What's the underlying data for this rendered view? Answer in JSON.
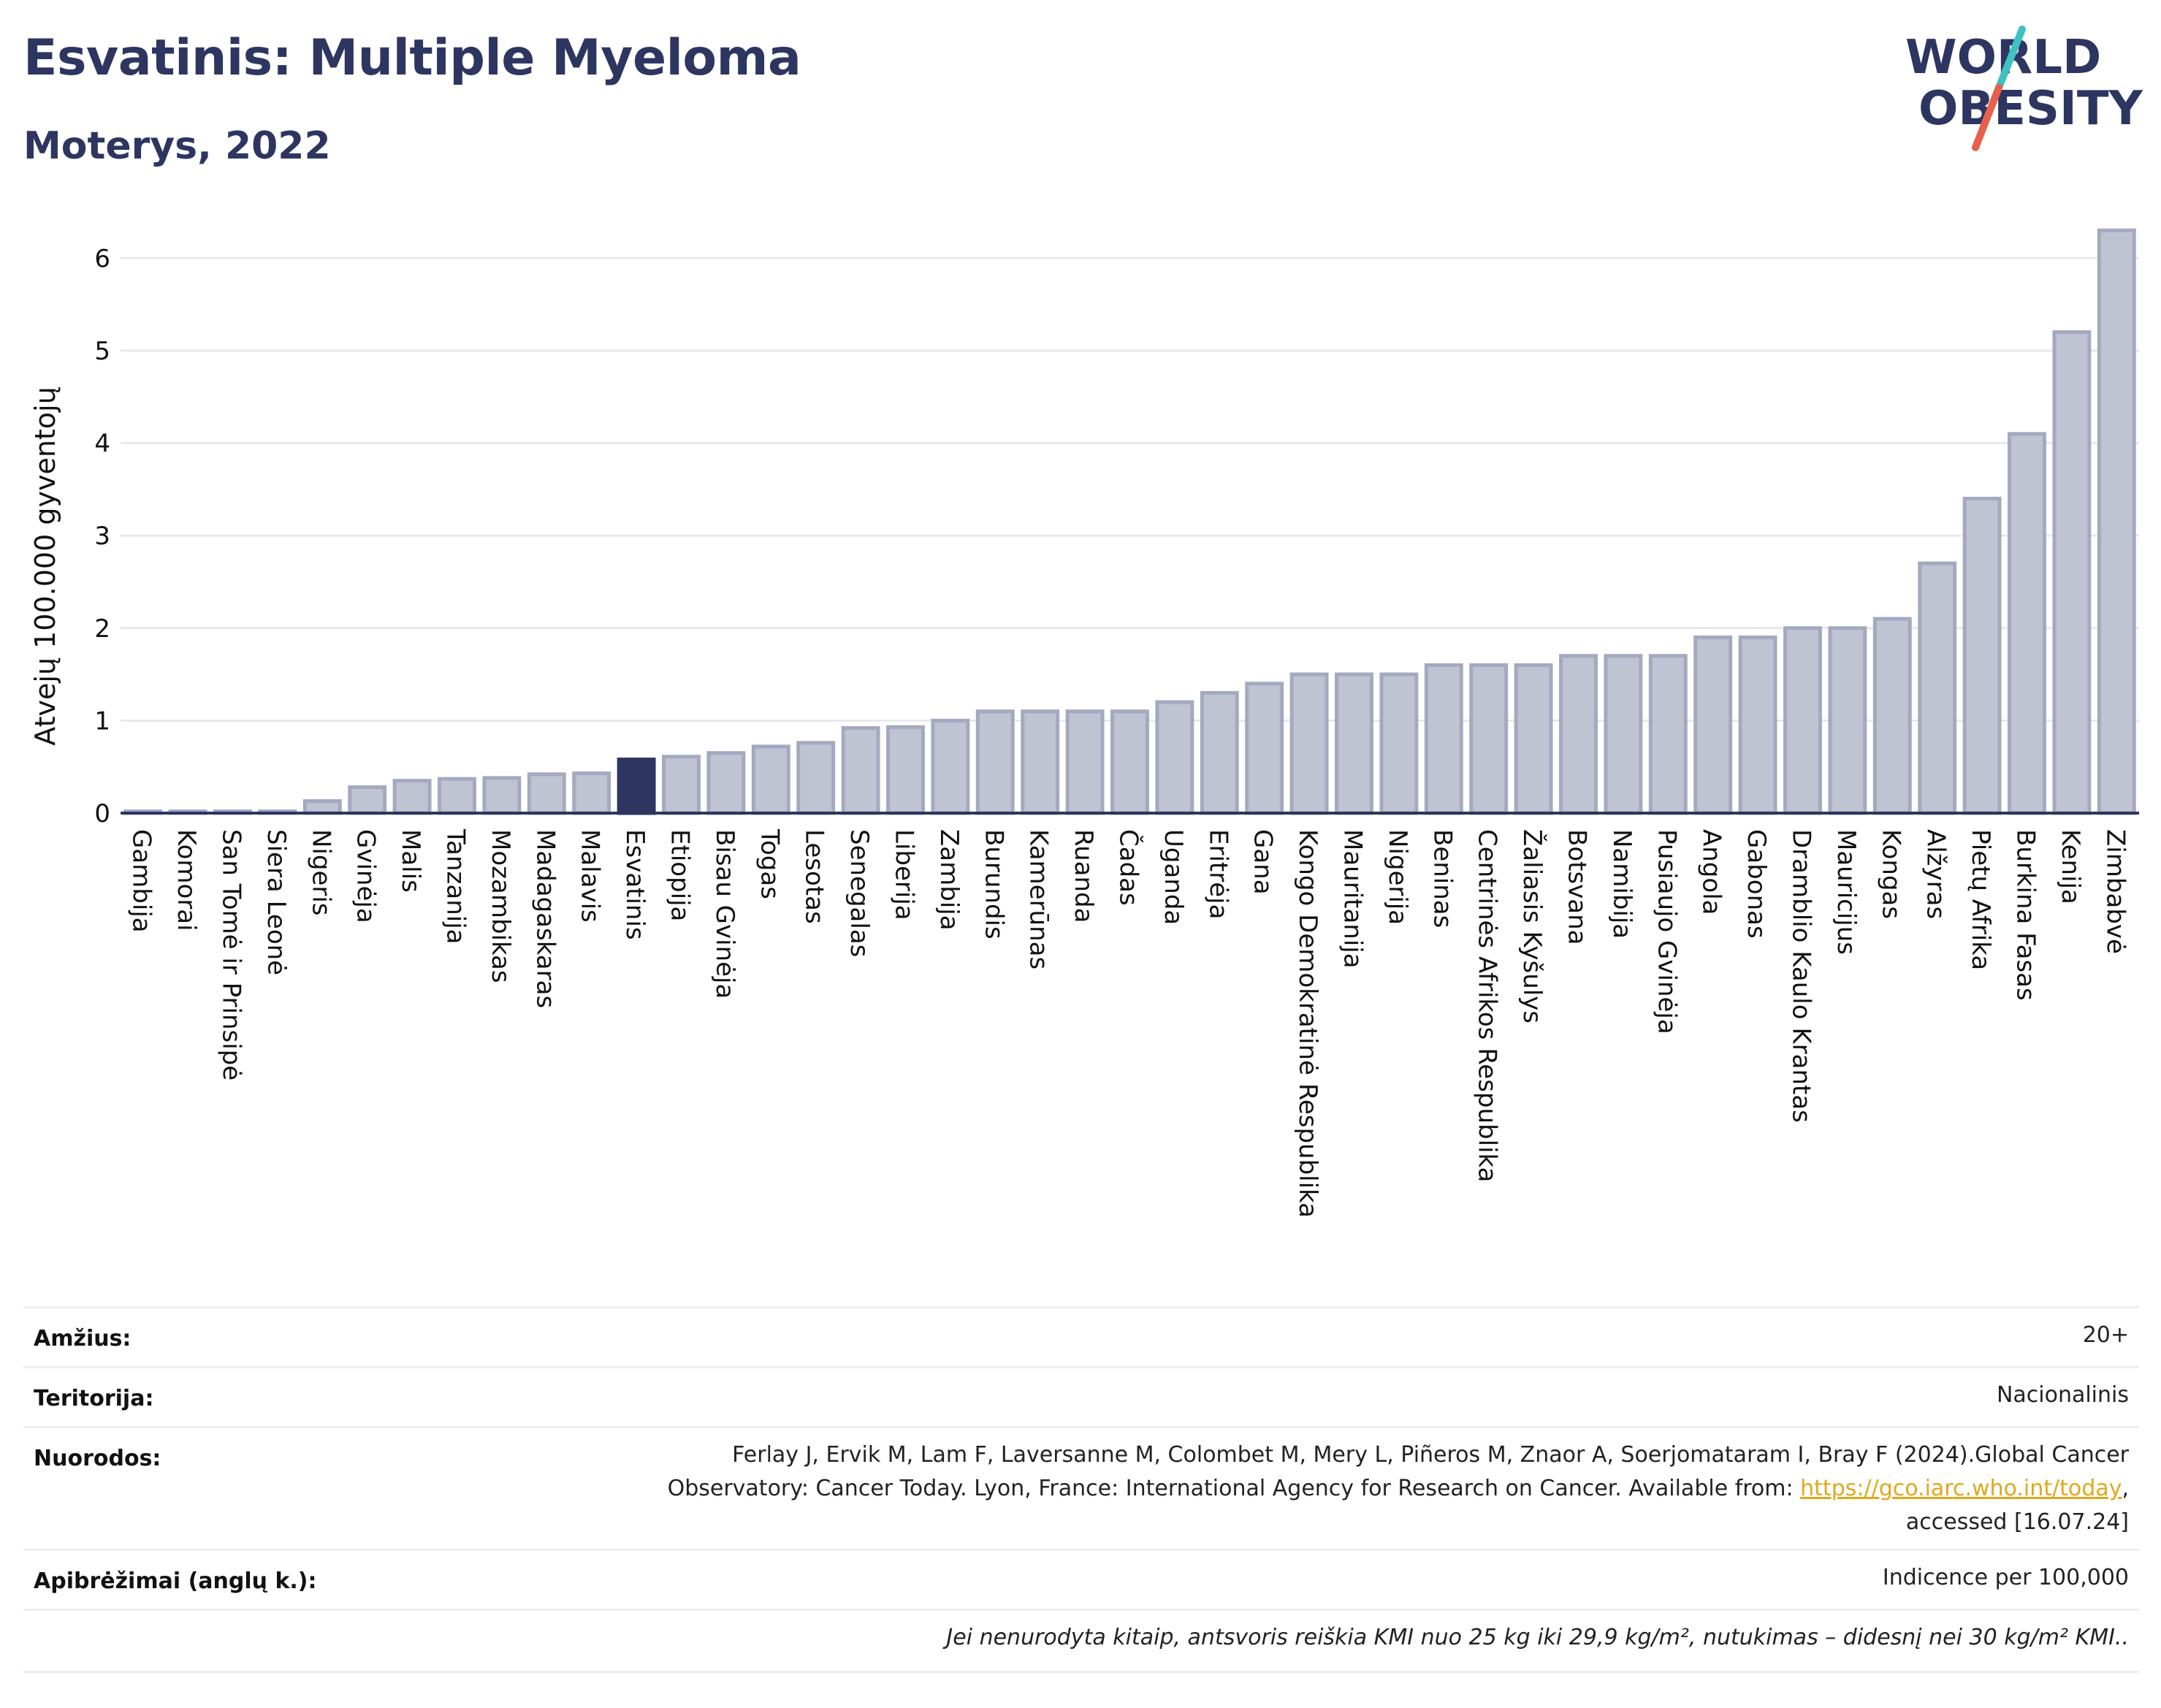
{
  "header": {
    "title": "Esvatinis: Multiple Myeloma",
    "subtitle": "Moterys, 2022"
  },
  "logo": {
    "line1": "WORLD",
    "line2": "OBESITY",
    "accent_colors": [
      "#3fc1c0",
      "#e8604c"
    ],
    "text_color": "#2d3561"
  },
  "chart_data": {
    "type": "bar",
    "ylabel": "Atvejų 100.000 gyventojų",
    "ylim": [
      0,
      6.5
    ],
    "yticks": [
      0,
      1,
      2,
      3,
      4,
      5,
      6
    ],
    "grid": true,
    "highlight": "Esvatinis",
    "colors": {
      "bar": "#bfc3d2",
      "bar_edge": "#a4a9c0",
      "highlight": "#2d3561",
      "axis": "#2d3561",
      "grid": "#e6e8ee"
    },
    "categories": [
      "Gambija",
      "Komorai",
      "San Tomė ir Prinsipė",
      "Siera Leonė",
      "Nigeris",
      "Gvinėja",
      "Malis",
      "Tanzanija",
      "Mozambikas",
      "Madagaskaras",
      "Malavis",
      "Esvatinis",
      "Etiopija",
      "Bisau Gvinėja",
      "Togas",
      "Lesotas",
      "Senegalas",
      "Liberija",
      "Zambija",
      "Burundis",
      "Kamerūnas",
      "Ruanda",
      "Čadas",
      "Uganda",
      "Eritrėja",
      "Gana",
      "Kongo Demokratinė Respublika",
      "Mauritanija",
      "Nigerija",
      "Beninas",
      "Centrinės Afrikos Respublika",
      "Žaliasis Kyšulys",
      "Botsvana",
      "Namibija",
      "Pusiaujo Gvinėja",
      "Angola",
      "Gabonas",
      "Dramblio Kaulo Krantas",
      "Mauricijus",
      "Kongas",
      "Alžyras",
      "Pietų Afrika",
      "Burkina Fasas",
      "Kenija",
      "Zimbabvė"
    ],
    "values": [
      0.02,
      0.02,
      0.02,
      0.02,
      0.13,
      0.28,
      0.35,
      0.37,
      0.38,
      0.42,
      0.43,
      0.58,
      0.61,
      0.65,
      0.72,
      0.76,
      0.92,
      0.93,
      1.0,
      1.1,
      1.1,
      1.1,
      1.1,
      1.2,
      1.3,
      1.4,
      1.5,
      1.5,
      1.5,
      1.6,
      1.6,
      1.6,
      1.7,
      1.7,
      1.7,
      1.9,
      1.9,
      2.0,
      2.0,
      2.1,
      2.7,
      3.4,
      4.1,
      5.2,
      6.3
    ]
  },
  "info": {
    "age_label": "Amžius:",
    "age_value": "20+",
    "territory_label": "Teritorija:",
    "territory_value": "Nacionalinis",
    "refs_label": "Nuorodos:",
    "refs_line1": "Ferlay J, Ervik M, Lam F, Laversanne M, Colombet M, Mery L, Piñeros M, Znaor A, Soerjomataram I, Bray F (2024).Global Cancer",
    "refs_line2": "Observatory: Cancer Today. Lyon, France: International Agency for Research on Cancer. Available from: ",
    "refs_link": "https://gco.iarc.who.int/today",
    "refs_line2_end": ",",
    "refs_line3": "accessed [16.07.24]",
    "defs_label": "Apibrėžimai (anglų k.):",
    "defs_value": "Indicence per 100,000",
    "note": "Jei nenurodyta kitaip, antsvoris reiškia KMI nuo 25 kg iki 29,9 kg/m², nutukimas – didesnį nei 30 kg/m² KMI.."
  }
}
